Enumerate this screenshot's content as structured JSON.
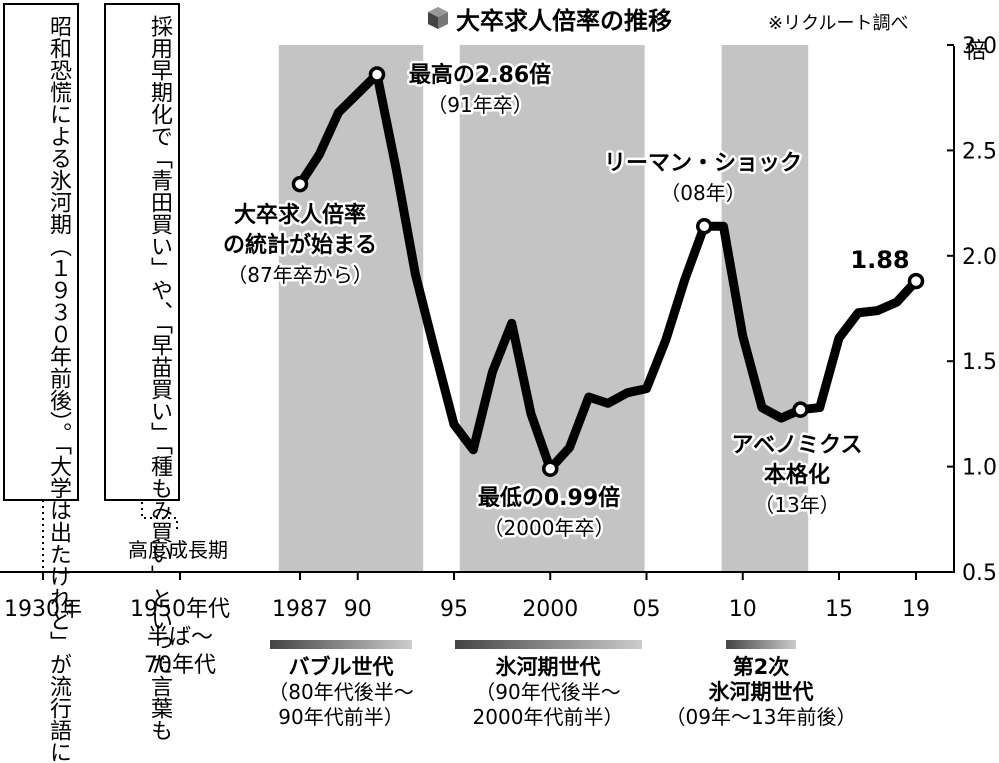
{
  "chart_data": {
    "type": "line",
    "title": "大卒求人倍率の推移",
    "source": "※リクルート調べ",
    "y_unit": "倍",
    "ylim": [
      0.5,
      3.0
    ],
    "y_ticks": [
      "3.0",
      "2.5",
      "2.0",
      "1.5",
      "1.0",
      "0.5"
    ],
    "x_ticks": [
      "1987",
      "90",
      "95",
      "2000",
      "05",
      "10",
      "15",
      "19"
    ],
    "era_labels": [
      "1930年",
      "1950年代",
      "半ば～",
      "70年代"
    ],
    "x": [
      1987,
      1988,
      1989,
      1990,
      1991,
      1992,
      1993,
      1994,
      1995,
      1996,
      1997,
      1998,
      1999,
      2000,
      2001,
      2002,
      2003,
      2004,
      2005,
      2006,
      2007,
      2008,
      2009,
      2010,
      2011,
      2012,
      2013,
      2014,
      2015,
      2016,
      2017,
      2018,
      2019
    ],
    "values": [
      2.34,
      2.48,
      2.68,
      2.77,
      2.86,
      2.41,
      1.91,
      1.55,
      1.2,
      1.08,
      1.45,
      1.68,
      1.25,
      0.99,
      1.09,
      1.33,
      1.3,
      1.35,
      1.37,
      1.6,
      1.89,
      2.14,
      2.14,
      1.62,
      1.28,
      1.23,
      1.27,
      1.28,
      1.61,
      1.73,
      1.74,
      1.78,
      1.88
    ],
    "marked_points": [
      1987,
      1991,
      2000,
      2008,
      2013,
      2019
    ],
    "shaded_periods": [
      [
        1985.9,
        1993.4
      ],
      [
        1995.3,
        2004.9
      ],
      [
        2008.9,
        2013.4
      ]
    ],
    "annotations": [
      {
        "lines": [
          "大卒求人倍率",
          "の統計が始まる",
          "（87年卒から）"
        ]
      },
      {
        "lines": [
          "最高の2.86倍",
          "（91年卒）"
        ]
      },
      {
        "lines": [
          "最低の0.99倍",
          "（2000年卒）"
        ]
      },
      {
        "lines": [
          "リーマン・ショック",
          "（08年）"
        ]
      },
      {
        "lines": [
          "アベノミクス",
          "本格化",
          "（13年）"
        ]
      },
      {
        "lines": [
          "1.88"
        ]
      }
    ],
    "side_note_1": "昭和恐慌による氷河期（１９３０年前後）。「大学は出たけれど」が流行語に",
    "side_note_2": "採用早期化で「青田買い」や、「早苗買い」「種もみ買い」といった言葉も",
    "side_note_2_label": "高度成長期",
    "generations": [
      {
        "name": "バブル世代",
        "period": [
          "（80年代後半～",
          "90年代前半）"
        ]
      },
      {
        "name": "氷河期世代",
        "period": [
          "（90年代後半～",
          "2000年代前半）"
        ]
      },
      {
        "name": [
          "第2次",
          "氷河期世代"
        ],
        "period": [
          "（09年～13年前後）"
        ]
      }
    ]
  }
}
